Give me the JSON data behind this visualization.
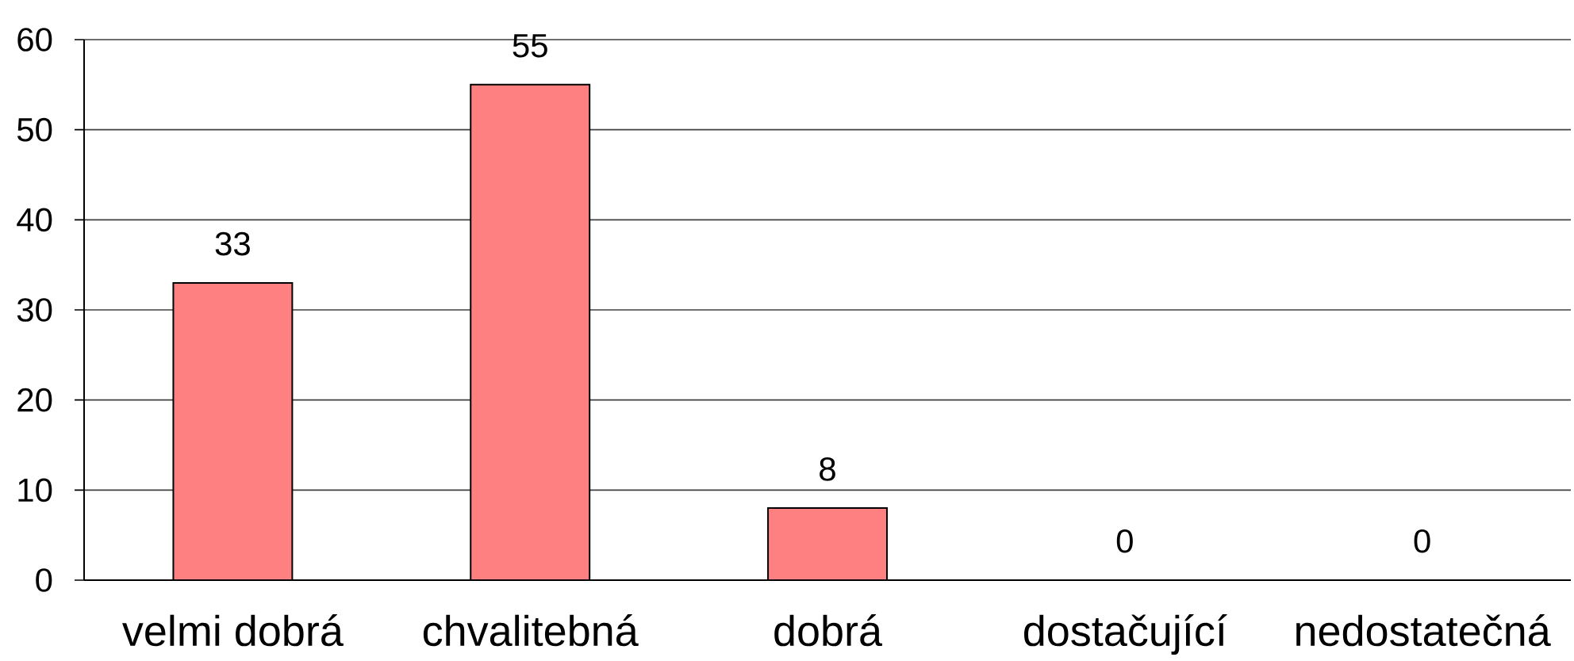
{
  "chart_data": {
    "type": "bar",
    "categories": [
      "velmi dobrá",
      "chvalitebná",
      "dobrá",
      "dostačující",
      "nedostatečná"
    ],
    "values": [
      33,
      55,
      8,
      0,
      0
    ],
    "color": "#ff8080",
    "ylim": [
      0,
      60
    ],
    "yticks": [
      0,
      10,
      20,
      30,
      40,
      50,
      60
    ],
    "grid": "y",
    "data_labels": true
  }
}
